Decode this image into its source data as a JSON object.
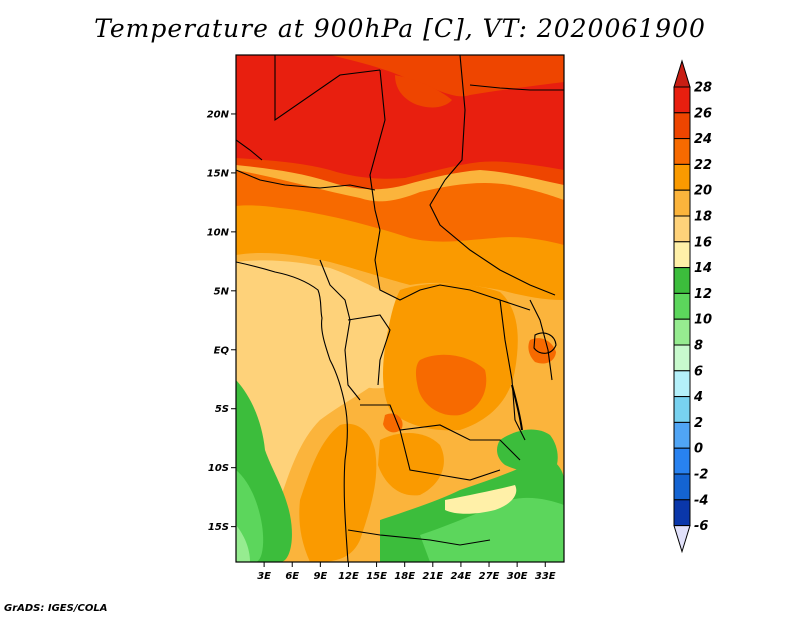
{
  "title": "Temperature at 900hPa [C], VT: 2020061900",
  "credit": "GrADS: IGES/COLA",
  "map": {
    "lon_range": [
      0,
      35
    ],
    "lat_range": [
      -18,
      25
    ],
    "lat_ticks": [
      {
        "lat": 20,
        "label": "20N"
      },
      {
        "lat": 15,
        "label": "15N"
      },
      {
        "lat": 10,
        "label": "10N"
      },
      {
        "lat": 5,
        "label": "5N"
      },
      {
        "lat": 0,
        "label": "EQ"
      },
      {
        "lat": -5,
        "label": "5S"
      },
      {
        "lat": -10,
        "label": "10S"
      },
      {
        "lat": -15,
        "label": "15S"
      }
    ],
    "lon_ticks": [
      {
        "lon": 3,
        "label": "3E"
      },
      {
        "lon": 6,
        "label": "6E"
      },
      {
        "lon": 9,
        "label": "9E"
      },
      {
        "lon": 12,
        "label": "12E"
      },
      {
        "lon": 15,
        "label": "15E"
      },
      {
        "lon": 18,
        "label": "18E"
      },
      {
        "lon": 21,
        "label": "21E"
      },
      {
        "lon": 24,
        "label": "24E"
      },
      {
        "lon": 27,
        "label": "27E"
      },
      {
        "lon": 30,
        "label": "30E"
      },
      {
        "lon": 33,
        "label": "33E"
      }
    ]
  },
  "colorbar": {
    "levels": [
      {
        "value": "28",
        "color": "#e81f0f"
      },
      {
        "value": "26",
        "color": "#ee4500"
      },
      {
        "value": "24",
        "color": "#f76a00"
      },
      {
        "value": "22",
        "color": "#fa9a00"
      },
      {
        "value": "20",
        "color": "#fbb43c"
      },
      {
        "value": "18",
        "color": "#fed27a"
      },
      {
        "value": "16",
        "color": "#fff0a8"
      },
      {
        "value": "14",
        "color": "#3cbd3c"
      },
      {
        "value": "12",
        "color": "#5cd65c"
      },
      {
        "value": "10",
        "color": "#96ec90"
      },
      {
        "value": "8",
        "color": "#c8facd"
      },
      {
        "value": "6",
        "color": "#b4f0fa"
      },
      {
        "value": "4",
        "color": "#78d2f0"
      },
      {
        "value": "2",
        "color": "#50a5f5"
      },
      {
        "value": "0",
        "color": "#2882f0"
      },
      {
        "value": "-2",
        "color": "#1464d2"
      },
      {
        "value": "-4",
        "color": "#0a37aa"
      },
      {
        "value": "-6",
        "color": "#000078"
      }
    ],
    "top_color": "#c81e14",
    "bottom_color": "#e1e1fa"
  }
}
